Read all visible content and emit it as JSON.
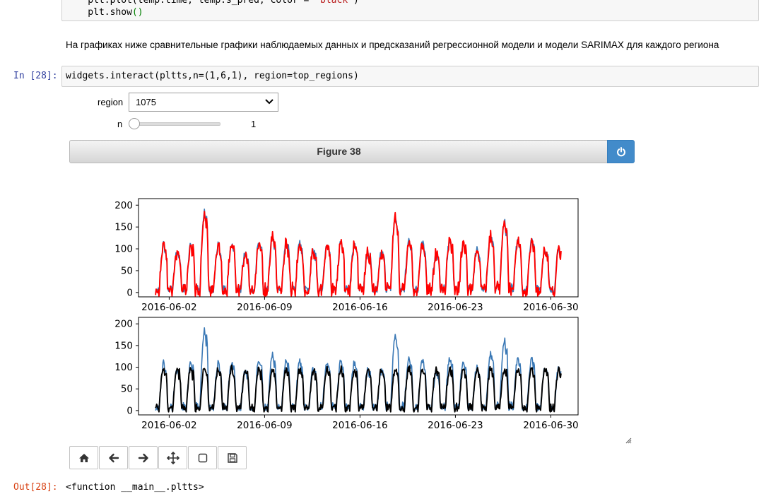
{
  "top_code": {
    "line1_pre": "    plt.plot(temp.time, temp.s_pred, color = ",
    "line1_str": "'black'",
    "line1_post": ")",
    "line2_pre": "    plt.show",
    "line2_paren": "()"
  },
  "markdown": "На графиках ниже сравнительные графики наблюдаемых данных и предсказаний регрессионной модели и модели SARIMAX для каждого региона",
  "cell_in": {
    "prompt": "In [28]:",
    "code": "widgets.interact(pltts,n=(1,6,1), region=top_regions)"
  },
  "widgets": {
    "region_label": "region",
    "region_value": "1075",
    "n_label": "n",
    "n_value": "1",
    "n_min": 1,
    "n_max": 6,
    "n_current": 1
  },
  "figure": {
    "title": "Figure 38",
    "power_icon": "power-icon"
  },
  "chart_data": [
    {
      "type": "line",
      "title": "",
      "xlabel": "",
      "ylabel": "",
      "x_ticks": [
        "2016-06-02",
        "2016-06-09",
        "2016-06-16",
        "2016-06-23",
        "2016-06-30"
      ],
      "y_ticks": [
        "0",
        "50",
        "100",
        "150",
        "200"
      ],
      "ylim": [
        -10,
        215
      ],
      "xlim": [
        "2016-06-01",
        "2016-06-30 18:00"
      ],
      "grid": false,
      "series": [
        {
          "color": "#3a78b5",
          "role": "observed"
        },
        {
          "color": "#ff0000",
          "role": "prediction"
        }
      ],
      "peaks_note_free": true
    },
    {
      "type": "line",
      "title": "",
      "xlabel": "",
      "ylabel": "",
      "x_ticks": [
        "2016-06-02",
        "2016-06-09",
        "2016-06-16",
        "2016-06-23",
        "2016-06-30"
      ],
      "y_ticks": [
        "0",
        "50",
        "100",
        "150",
        "200"
      ],
      "ylim": [
        -10,
        215
      ],
      "xlim": [
        "2016-06-01",
        "2016-06-30 18:00"
      ],
      "grid": false,
      "series": [
        {
          "color": "#3a78b5",
          "role": "observed"
        },
        {
          "color": "#000000",
          "role": "prediction"
        }
      ]
    }
  ],
  "toolbar": [
    {
      "icon": "home-icon"
    },
    {
      "icon": "arrow-left-icon"
    },
    {
      "icon": "arrow-right-icon"
    },
    {
      "icon": "move-icon"
    },
    {
      "icon": "zoom-rect-icon"
    },
    {
      "icon": "save-icon"
    }
  ],
  "cell_out": {
    "prompt": "Out[28]:",
    "text": "<function __main__.pltts>"
  }
}
